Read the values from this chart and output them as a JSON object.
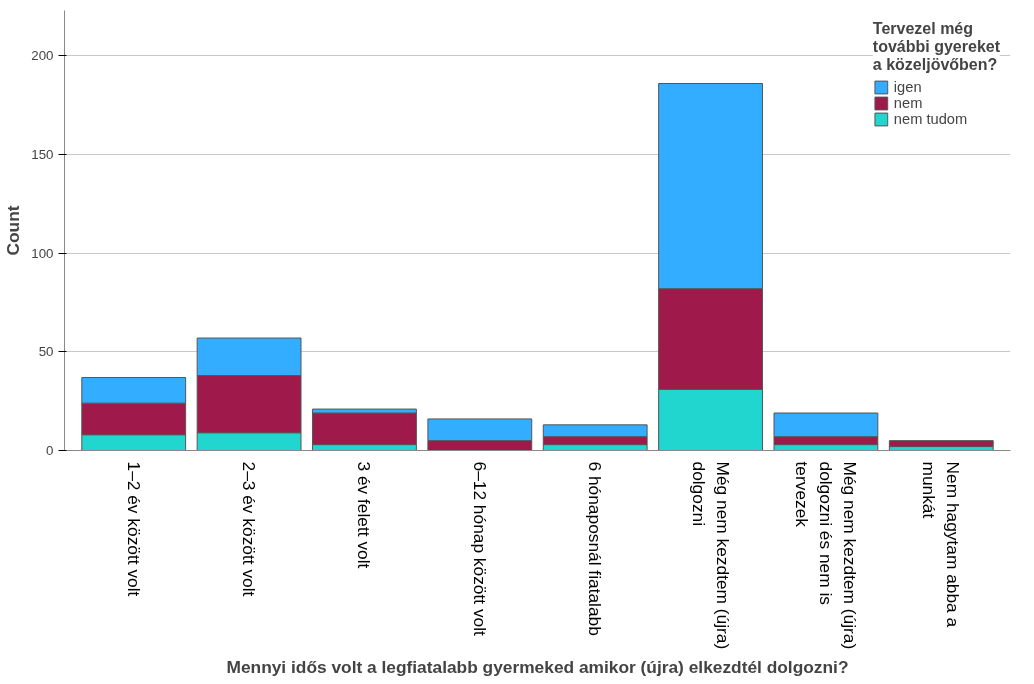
{
  "chart_data": {
    "type": "bar",
    "stacked": true,
    "xlabel": "Mennyi idős volt a legfiatalabb gyermeked amikor (újra) elkezdtél dolgozni?",
    "ylabel": "Count",
    "legend_title": "Tervezel még további gyereket a közeljövőben?",
    "categories": [
      "1–2 év között volt",
      "2–3 év között volt",
      "3 év felett volt",
      "6–12 hónap között volt",
      "6 hónaposnál fiatalabb",
      "Még nem kezdtem (újra) dolgozni",
      "Még nem kezdtem (újra) dolgozni és nem is tervezek",
      "Nem hagytam abba a munkát"
    ],
    "series": [
      {
        "name": "nem tudom",
        "color": "#22d6d0",
        "values": [
          8,
          9,
          3,
          null,
          3,
          31,
          3,
          2
        ]
      },
      {
        "name": "nem",
        "color": "#a0194b",
        "values": [
          16,
          29,
          16,
          5,
          4,
          51,
          4,
          3
        ]
      },
      {
        "name": "igen",
        "color": "#33adff",
        "values": [
          13,
          19,
          2,
          11,
          6,
          104,
          12,
          null
        ]
      }
    ],
    "ylim": [
      0,
      223
    ],
    "yticks": [
      0,
      50,
      100,
      150,
      200
    ],
    "grid": "y",
    "legend": "top right"
  }
}
